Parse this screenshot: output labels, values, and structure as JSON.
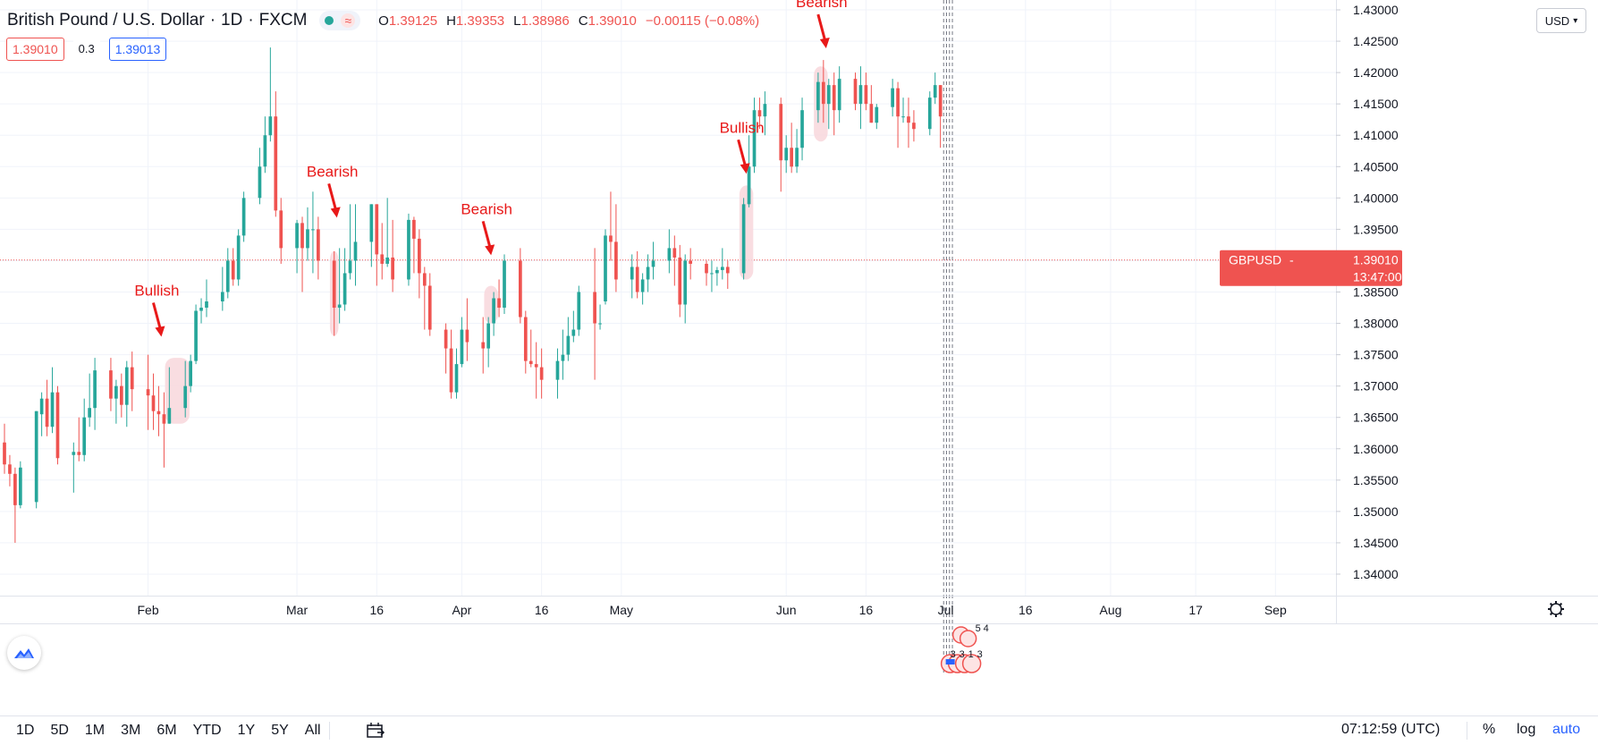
{
  "header": {
    "symbol_title": "British Pound / U.S. Dollar",
    "interval": "1D",
    "exchange": "FXCM",
    "sep": "·",
    "ohlc": [
      {
        "label": "O",
        "value": "1.39125"
      },
      {
        "label": "H",
        "value": "1.39353"
      },
      {
        "label": "L",
        "value": "1.38986"
      },
      {
        "label": "C",
        "value": "1.39010"
      },
      {
        "label": "",
        "value": "−0.00115 (−0.08%)"
      }
    ]
  },
  "trade": {
    "sell_price": "1.39010",
    "spread": "0.3",
    "buy_price": "1.39013"
  },
  "currency_button": {
    "label": "USD"
  },
  "colors": {
    "up": "#26a69a",
    "down": "#ef5350",
    "annotation": "#e81919",
    "highlight": "#f8d7dc",
    "grid": "#f0f3fa",
    "axis_text": "#131722"
  },
  "chart_data": {
    "type": "candlestick",
    "symbol": "GBPUSD",
    "current_price": "1.39010",
    "countdown": "13:47:00",
    "ylim": [
      1.337,
      1.432
    ],
    "y_ticks": [
      "1.34000",
      "1.34500",
      "1.35000",
      "1.35500",
      "1.36000",
      "1.36500",
      "1.37000",
      "1.37500",
      "1.38000",
      "1.38500",
      "1.39000",
      "1.39500",
      "1.40000",
      "1.40500",
      "1.41000",
      "1.41500",
      "1.42000",
      "1.42500",
      "1.43000"
    ],
    "x_start": "2021-01-05",
    "x_end": "2021-09-07",
    "x_ticks": [
      {
        "date": "2021-02-01",
        "label": "Feb"
      },
      {
        "date": "2021-03-01",
        "label": "Mar"
      },
      {
        "date": "2021-03-16",
        "label": "16"
      },
      {
        "date": "2021-04-01",
        "label": "Apr"
      },
      {
        "date": "2021-04-16",
        "label": "16"
      },
      {
        "date": "2021-05-01",
        "label": "May"
      },
      {
        "date": "2021-06-01",
        "label": "Jun"
      },
      {
        "date": "2021-06-16",
        "label": "16"
      },
      {
        "date": "2021-07-01",
        "label": "Jul"
      },
      {
        "date": "2021-07-16",
        "label": "16"
      },
      {
        "date": "2021-08-01",
        "label": "Aug"
      },
      {
        "date": "2021-08-17",
        "label": "17"
      },
      {
        "date": "2021-09-01",
        "label": "Sep"
      }
    ],
    "candles": [
      {
        "d": "2021-01-05",
        "o": 1.361,
        "h": 1.364,
        "l": 1.356,
        "c": 1.3575
      },
      {
        "d": "2021-01-06",
        "o": 1.3575,
        "h": 1.359,
        "l": 1.354,
        "c": 1.356
      },
      {
        "d": "2021-01-07",
        "o": 1.356,
        "h": 1.357,
        "l": 1.345,
        "c": 1.351
      },
      {
        "d": "2021-01-08",
        "o": 1.351,
        "h": 1.358,
        "l": 1.3505,
        "c": 1.357
      },
      {
        "d": "2021-01-11",
        "o": 1.3515,
        "h": 1.366,
        "l": 1.3505,
        "c": 1.366
      },
      {
        "d": "2021-01-12",
        "o": 1.3655,
        "h": 1.369,
        "l": 1.362,
        "c": 1.368
      },
      {
        "d": "2021-01-13",
        "o": 1.368,
        "h": 1.371,
        "l": 1.362,
        "c": 1.3635
      },
      {
        "d": "2021-01-14",
        "o": 1.3635,
        "h": 1.373,
        "l": 1.3625,
        "c": 1.369
      },
      {
        "d": "2021-01-15",
        "o": 1.369,
        "h": 1.37,
        "l": 1.3575,
        "c": 1.3585
      },
      {
        "d": "2021-01-18",
        "o": 1.359,
        "h": 1.361,
        "l": 1.353,
        "c": 1.3595
      },
      {
        "d": "2021-01-19",
        "o": 1.3595,
        "h": 1.365,
        "l": 1.358,
        "c": 1.359
      },
      {
        "d": "2021-01-20",
        "o": 1.359,
        "h": 1.368,
        "l": 1.358,
        "c": 1.365
      },
      {
        "d": "2021-01-21",
        "o": 1.365,
        "h": 1.372,
        "l": 1.3635,
        "c": 1.3665
      },
      {
        "d": "2021-01-22",
        "o": 1.3665,
        "h": 1.3745,
        "l": 1.363,
        "c": 1.3725
      },
      {
        "d": "2021-01-25",
        "o": 1.3725,
        "h": 1.3745,
        "l": 1.366,
        "c": 1.368
      },
      {
        "d": "2021-01-26",
        "o": 1.368,
        "h": 1.371,
        "l": 1.364,
        "c": 1.37
      },
      {
        "d": "2021-01-27",
        "o": 1.37,
        "h": 1.372,
        "l": 1.365,
        "c": 1.367
      },
      {
        "d": "2021-01-28",
        "o": 1.367,
        "h": 1.374,
        "l": 1.3635,
        "c": 1.373
      },
      {
        "d": "2021-01-29",
        "o": 1.373,
        "h": 1.3755,
        "l": 1.366,
        "c": 1.3695
      },
      {
        "d": "2021-02-01",
        "o": 1.3695,
        "h": 1.375,
        "l": 1.363,
        "c": 1.3685
      },
      {
        "d": "2021-02-02",
        "o": 1.3685,
        "h": 1.372,
        "l": 1.363,
        "c": 1.366
      },
      {
        "d": "2021-02-03",
        "o": 1.366,
        "h": 1.37,
        "l": 1.362,
        "c": 1.3655
      },
      {
        "d": "2021-02-04",
        "o": 1.3655,
        "h": 1.369,
        "l": 1.357,
        "c": 1.364
      },
      {
        "d": "2021-02-05",
        "o": 1.364,
        "h": 1.373,
        "l": 1.364,
        "c": 1.3665
      },
      {
        "d": "2021-02-08",
        "o": 1.3665,
        "h": 1.374,
        "l": 1.365,
        "c": 1.37
      },
      {
        "d": "2021-02-09",
        "o": 1.37,
        "h": 1.375,
        "l": 1.369,
        "c": 1.374
      },
      {
        "d": "2021-02-10",
        "o": 1.374,
        "h": 1.383,
        "l": 1.3735,
        "c": 1.382
      },
      {
        "d": "2021-02-11",
        "o": 1.382,
        "h": 1.384,
        "l": 1.38,
        "c": 1.3825
      },
      {
        "d": "2021-02-12",
        "o": 1.3825,
        "h": 1.387,
        "l": 1.381,
        "c": 1.3835
      },
      {
        "d": "2021-02-15",
        "o": 1.3835,
        "h": 1.389,
        "l": 1.382,
        "c": 1.385
      },
      {
        "d": "2021-02-16",
        "o": 1.385,
        "h": 1.392,
        "l": 1.384,
        "c": 1.39
      },
      {
        "d": "2021-02-17",
        "o": 1.39,
        "h": 1.392,
        "l": 1.386,
        "c": 1.387
      },
      {
        "d": "2021-02-18",
        "o": 1.387,
        "h": 1.395,
        "l": 1.386,
        "c": 1.394
      },
      {
        "d": "2021-02-19",
        "o": 1.394,
        "h": 1.401,
        "l": 1.393,
        "c": 1.4
      },
      {
        "d": "2021-02-22",
        "o": 1.4,
        "h": 1.408,
        "l": 1.399,
        "c": 1.405
      },
      {
        "d": "2021-02-23",
        "o": 1.405,
        "h": 1.413,
        "l": 1.404,
        "c": 1.41
      },
      {
        "d": "2021-02-24",
        "o": 1.41,
        "h": 1.424,
        "l": 1.409,
        "c": 1.413
      },
      {
        "d": "2021-02-25",
        "o": 1.413,
        "h": 1.417,
        "l": 1.397,
        "c": 1.398
      },
      {
        "d": "2021-02-26",
        "o": 1.398,
        "h": 1.4,
        "l": 1.3895,
        "c": 1.392
      },
      {
        "d": "2021-03-01",
        "o": 1.392,
        "h": 1.3965,
        "l": 1.388,
        "c": 1.396
      },
      {
        "d": "2021-03-02",
        "o": 1.396,
        "h": 1.397,
        "l": 1.385,
        "c": 1.392
      },
      {
        "d": "2021-03-03",
        "o": 1.392,
        "h": 1.3985,
        "l": 1.39,
        "c": 1.395
      },
      {
        "d": "2021-03-04",
        "o": 1.395,
        "h": 1.401,
        "l": 1.388,
        "c": 1.395
      },
      {
        "d": "2021-03-05",
        "o": 1.395,
        "h": 1.397,
        "l": 1.387,
        "c": 1.39
      },
      {
        "d": "2021-03-08",
        "o": 1.39,
        "h": 1.3915,
        "l": 1.378,
        "c": 1.3825
      },
      {
        "d": "2021-03-09",
        "o": 1.3825,
        "h": 1.392,
        "l": 1.38,
        "c": 1.383
      },
      {
        "d": "2021-03-10",
        "o": 1.383,
        "h": 1.392,
        "l": 1.382,
        "c": 1.388
      },
      {
        "d": "2021-03-11",
        "o": 1.388,
        "h": 1.399,
        "l": 1.387,
        "c": 1.39
      },
      {
        "d": "2021-03-12",
        "o": 1.39,
        "h": 1.399,
        "l": 1.386,
        "c": 1.393
      },
      {
        "d": "2021-03-15",
        "o": 1.393,
        "h": 1.399,
        "l": 1.389,
        "c": 1.399
      },
      {
        "d": "2021-03-16",
        "o": 1.399,
        "h": 1.399,
        "l": 1.386,
        "c": 1.391
      },
      {
        "d": "2021-03-17",
        "o": 1.391,
        "h": 1.396,
        "l": 1.387,
        "c": 1.3895
      },
      {
        "d": "2021-03-18",
        "o": 1.3895,
        "h": 1.4,
        "l": 1.389,
        "c": 1.3905
      },
      {
        "d": "2021-03-19",
        "o": 1.3905,
        "h": 1.3965,
        "l": 1.385,
        "c": 1.387
      },
      {
        "d": "2021-03-22",
        "o": 1.387,
        "h": 1.3975,
        "l": 1.386,
        "c": 1.3965
      },
      {
        "d": "2021-03-23",
        "o": 1.3965,
        "h": 1.397,
        "l": 1.388,
        "c": 1.3935
      },
      {
        "d": "2021-03-24",
        "o": 1.3935,
        "h": 1.395,
        "l": 1.384,
        "c": 1.388
      },
      {
        "d": "2021-03-25",
        "o": 1.388,
        "h": 1.389,
        "l": 1.379,
        "c": 1.386
      },
      {
        "d": "2021-03-26",
        "o": 1.386,
        "h": 1.388,
        "l": 1.378,
        "c": 1.379
      },
      {
        "d": "2021-03-29",
        "o": 1.379,
        "h": 1.38,
        "l": 1.372,
        "c": 1.376
      },
      {
        "d": "2021-03-30",
        "o": 1.376,
        "h": 1.379,
        "l": 1.368,
        "c": 1.369
      },
      {
        "d": "2021-03-31",
        "o": 1.369,
        "h": 1.376,
        "l": 1.368,
        "c": 1.3735
      },
      {
        "d": "2021-04-01",
        "o": 1.3735,
        "h": 1.381,
        "l": 1.373,
        "c": 1.379
      },
      {
        "d": "2021-04-02",
        "o": 1.379,
        "h": 1.384,
        "l": 1.374,
        "c": 1.377
      },
      {
        "d": "2021-04-05",
        "o": 1.377,
        "h": 1.381,
        "l": 1.372,
        "c": 1.376
      },
      {
        "d": "2021-04-06",
        "o": 1.376,
        "h": 1.381,
        "l": 1.373,
        "c": 1.38
      },
      {
        "d": "2021-04-07",
        "o": 1.38,
        "h": 1.385,
        "l": 1.378,
        "c": 1.384
      },
      {
        "d": "2021-04-08",
        "o": 1.384,
        "h": 1.387,
        "l": 1.381,
        "c": 1.3825
      },
      {
        "d": "2021-04-09",
        "o": 1.3825,
        "h": 1.391,
        "l": 1.3815,
        "c": 1.39
      },
      {
        "d": "2021-04-12",
        "o": 1.39,
        "h": 1.392,
        "l": 1.38,
        "c": 1.381
      },
      {
        "d": "2021-04-13",
        "o": 1.381,
        "h": 1.382,
        "l": 1.372,
        "c": 1.374
      },
      {
        "d": "2021-04-14",
        "o": 1.374,
        "h": 1.379,
        "l": 1.373,
        "c": 1.3735
      },
      {
        "d": "2021-04-15",
        "o": 1.3735,
        "h": 1.377,
        "l": 1.368,
        "c": 1.373
      },
      {
        "d": "2021-04-16",
        "o": 1.373,
        "h": 1.376,
        "l": 1.368,
        "c": 1.371
      },
      {
        "d": "2021-04-19",
        "o": 1.371,
        "h": 1.376,
        "l": 1.368,
        "c": 1.374
      },
      {
        "d": "2021-04-20",
        "o": 1.374,
        "h": 1.379,
        "l": 1.371,
        "c": 1.375
      },
      {
        "d": "2021-04-21",
        "o": 1.375,
        "h": 1.381,
        "l": 1.374,
        "c": 1.378
      },
      {
        "d": "2021-04-22",
        "o": 1.378,
        "h": 1.382,
        "l": 1.377,
        "c": 1.379
      },
      {
        "d": "2021-04-23",
        "o": 1.379,
        "h": 1.386,
        "l": 1.378,
        "c": 1.385
      },
      {
        "d": "2021-04-26",
        "o": 1.385,
        "h": 1.392,
        "l": 1.371,
        "c": 1.38
      },
      {
        "d": "2021-04-27",
        "o": 1.38,
        "h": 1.383,
        "l": 1.379,
        "c": 1.38
      },
      {
        "d": "2021-04-28",
        "o": 1.3835,
        "h": 1.395,
        "l": 1.383,
        "c": 1.394
      },
      {
        "d": "2021-04-29",
        "o": 1.394,
        "h": 1.401,
        "l": 1.39,
        "c": 1.393
      },
      {
        "d": "2021-04-30",
        "o": 1.393,
        "h": 1.399,
        "l": 1.385,
        "c": 1.387
      },
      {
        "d": "2021-05-03",
        "o": 1.387,
        "h": 1.391,
        "l": 1.384,
        "c": 1.389
      },
      {
        "d": "2021-05-04",
        "o": 1.389,
        "h": 1.3915,
        "l": 1.384,
        "c": 1.385
      },
      {
        "d": "2021-05-05",
        "o": 1.385,
        "h": 1.388,
        "l": 1.383,
        "c": 1.387
      },
      {
        "d": "2021-05-06",
        "o": 1.387,
        "h": 1.391,
        "l": 1.385,
        "c": 1.389
      },
      {
        "d": "2021-05-07",
        "o": 1.389,
        "h": 1.393,
        "l": 1.387,
        "c": 1.39
      },
      {
        "d": "2021-05-10",
        "o": 1.39,
        "h": 1.395,
        "l": 1.388,
        "c": 1.392
      },
      {
        "d": "2021-05-11",
        "o": 1.392,
        "h": 1.394,
        "l": 1.386,
        "c": 1.3905
      },
      {
        "d": "2021-05-12",
        "o": 1.3905,
        "h": 1.3925,
        "l": 1.381,
        "c": 1.383
      },
      {
        "d": "2021-05-13",
        "o": 1.383,
        "h": 1.391,
        "l": 1.38,
        "c": 1.39
      },
      {
        "d": "2021-05-14",
        "o": 1.39,
        "h": 1.392,
        "l": 1.387,
        "c": 1.3895
      },
      {
        "d": "2021-05-17",
        "o": 1.3895,
        "h": 1.39,
        "l": 1.386,
        "c": 1.388
      },
      {
        "d": "2021-05-18",
        "o": 1.388,
        "h": 1.39,
        "l": 1.385,
        "c": 1.388
      },
      {
        "d": "2021-05-19",
        "o": 1.388,
        "h": 1.389,
        "l": 1.386,
        "c": 1.3885
      },
      {
        "d": "2021-05-20",
        "o": 1.3885,
        "h": 1.392,
        "l": 1.387,
        "c": 1.389
      },
      {
        "d": "2021-05-21",
        "o": 1.389,
        "h": 1.39,
        "l": 1.3855,
        "c": 1.388
      },
      {
        "d": "2021-05-24",
        "o": 1.388,
        "h": 1.4,
        "l": 1.387,
        "c": 1.399
      },
      {
        "d": "2021-05-25",
        "o": 1.399,
        "h": 1.41,
        "l": 1.3985,
        "c": 1.405
      },
      {
        "d": "2021-05-26",
        "o": 1.405,
        "h": 1.416,
        "l": 1.404,
        "c": 1.414
      },
      {
        "d": "2021-05-27",
        "o": 1.414,
        "h": 1.416,
        "l": 1.411,
        "c": 1.413
      },
      {
        "d": "2021-05-28",
        "o": 1.413,
        "h": 1.417,
        "l": 1.41,
        "c": 1.415
      },
      {
        "d": "2021-05-31",
        "o": 1.415,
        "h": 1.416,
        "l": 1.401,
        "c": 1.406
      },
      {
        "d": "2021-06-01",
        "o": 1.406,
        "h": 1.41,
        "l": 1.404,
        "c": 1.408
      },
      {
        "d": "2021-06-02",
        "o": 1.408,
        "h": 1.412,
        "l": 1.404,
        "c": 1.405
      },
      {
        "d": "2021-06-03",
        "o": 1.405,
        "h": 1.411,
        "l": 1.404,
        "c": 1.408
      },
      {
        "d": "2021-06-04",
        "o": 1.408,
        "h": 1.416,
        "l": 1.406,
        "c": 1.414
      },
      {
        "d": "2021-06-07",
        "o": 1.414,
        "h": 1.42,
        "l": 1.412,
        "c": 1.4185
      },
      {
        "d": "2021-06-08",
        "o": 1.4185,
        "h": 1.422,
        "l": 1.412,
        "c": 1.415
      },
      {
        "d": "2021-06-09",
        "o": 1.415,
        "h": 1.419,
        "l": 1.411,
        "c": 1.418
      },
      {
        "d": "2021-06-10",
        "o": 1.418,
        "h": 1.42,
        "l": 1.41,
        "c": 1.414
      },
      {
        "d": "2021-06-11",
        "o": 1.414,
        "h": 1.421,
        "l": 1.412,
        "c": 1.419
      },
      {
        "d": "2021-06-14",
        "o": 1.419,
        "h": 1.42,
        "l": 1.414,
        "c": 1.415
      },
      {
        "d": "2021-06-15",
        "o": 1.415,
        "h": 1.421,
        "l": 1.411,
        "c": 1.418
      },
      {
        "d": "2021-06-16",
        "o": 1.418,
        "h": 1.42,
        "l": 1.414,
        "c": 1.415
      },
      {
        "d": "2021-06-17",
        "o": 1.415,
        "h": 1.418,
        "l": 1.412,
        "c": 1.412
      },
      {
        "d": "2021-06-18",
        "o": 1.412,
        "h": 1.415,
        "l": 1.411,
        "c": 1.4145
      },
      {
        "d": "2021-06-21",
        "o": 1.4145,
        "h": 1.419,
        "l": 1.413,
        "c": 1.4175
      },
      {
        "d": "2021-06-22",
        "o": 1.4175,
        "h": 1.4185,
        "l": 1.408,
        "c": 1.413
      },
      {
        "d": "2021-06-23",
        "o": 1.413,
        "h": 1.416,
        "l": 1.412,
        "c": 1.413
      },
      {
        "d": "2021-06-24",
        "o": 1.413,
        "h": 1.416,
        "l": 1.408,
        "c": 1.412
      },
      {
        "d": "2021-06-25",
        "o": 1.412,
        "h": 1.414,
        "l": 1.409,
        "c": 1.411
      },
      {
        "d": "2021-06-28",
        "o": 1.411,
        "h": 1.417,
        "l": 1.41,
        "c": 1.416
      },
      {
        "d": "2021-06-29",
        "o": 1.416,
        "h": 1.42,
        "l": 1.415,
        "c": 1.418
      },
      {
        "d": "2021-06-30",
        "o": 1.418,
        "h": 1.418,
        "l": 1.408,
        "c": 1.413
      }
    ],
    "highlights": [
      {
        "d_start": "2021-02-05",
        "d_end": "2021-02-08",
        "p_low": 1.364,
        "p_high": 1.3745
      },
      {
        "d_start": "2021-03-08",
        "d_end": "2021-03-08",
        "p_low": 1.378,
        "p_high": 1.3915
      },
      {
        "d_start": "2021-04-06",
        "d_end": "2021-04-07",
        "p_low": 1.38,
        "p_high": 1.386
      },
      {
        "d_start": "2021-05-24",
        "d_end": "2021-05-25",
        "p_low": 1.387,
        "p_high": 1.402
      },
      {
        "d_start": "2021-06-07",
        "d_end": "2021-06-08",
        "p_low": 1.409,
        "p_high": 1.421
      }
    ],
    "annotations": [
      {
        "text": "Bullish",
        "d": "2021-02-03",
        "p": 1.381
      },
      {
        "text": "Bearish",
        "d": "2021-03-08",
        "p": 1.4
      },
      {
        "text": "Bearish",
        "d": "2021-04-06",
        "p": 1.394
      },
      {
        "text": "Bullish",
        "d": "2021-05-24",
        "p": 1.407
      },
      {
        "text": "Bearish",
        "d": "2021-06-08",
        "p": 1.427
      }
    ],
    "event_markers": [
      {
        "label": "5"
      },
      {
        "label": "4"
      },
      {
        "label": "3"
      },
      {
        "label": "3"
      },
      {
        "label": "1"
      },
      {
        "label": "3"
      }
    ]
  },
  "bottom_bar": {
    "ranges": [
      "1D",
      "5D",
      "1M",
      "3M",
      "6M",
      "YTD",
      "1Y",
      "5Y",
      "All"
    ],
    "clock": "07:12:59 (UTC)",
    "percent": "%",
    "log": "log",
    "auto": "auto"
  }
}
